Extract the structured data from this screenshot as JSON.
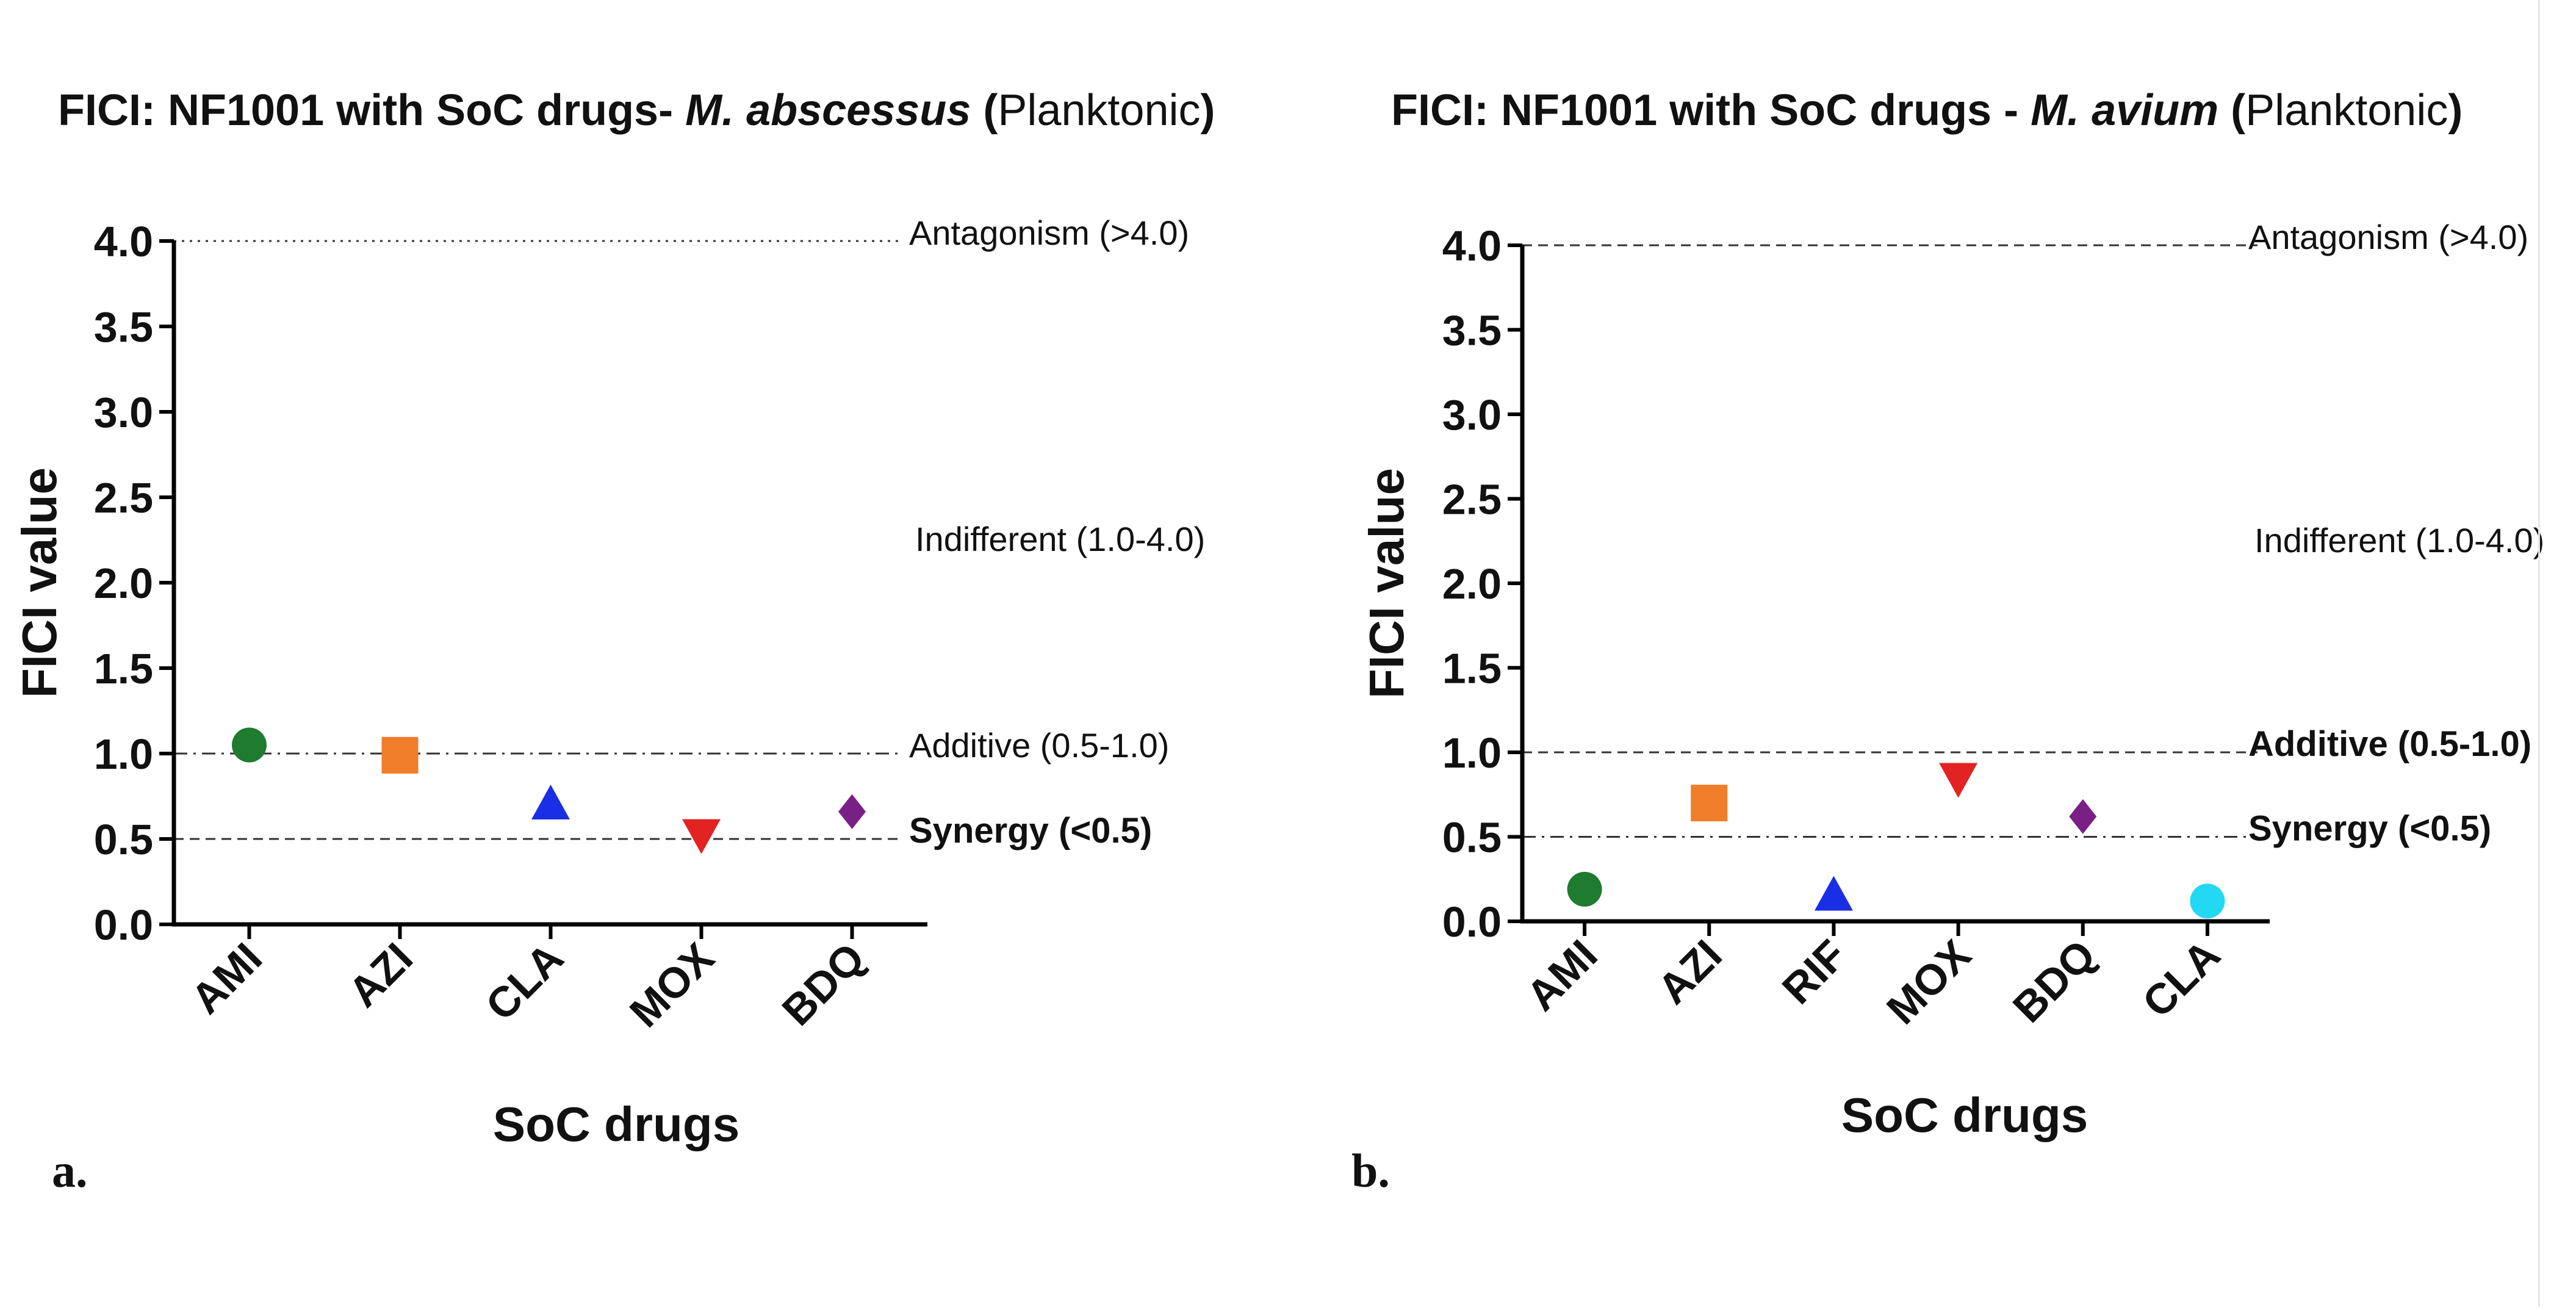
{
  "chart_data": [
    {
      "type": "scatter",
      "panel_label": "a.",
      "title": {
        "prefix": "FICI: NF1001 with SoC drugs- ",
        "organism": "M. abscessus",
        "paren_open": " (",
        "condition": "Planktonic",
        "paren_close": ")"
      },
      "xlabel": "SoC drugs",
      "ylabel": "FICI value",
      "ylim": [
        0,
        4.0
      ],
      "yticks": [
        "0.0",
        "0.5",
        "1.0",
        "1.5",
        "2.0",
        "2.5",
        "3.0",
        "3.5",
        "4.0"
      ],
      "categories": [
        "AMI",
        "AZI",
        "CLA",
        "MOX",
        "BDQ"
      ],
      "values": [
        1.05,
        0.99,
        0.7,
        0.53,
        0.66
      ],
      "markers": [
        "circle",
        "square",
        "triangle-up",
        "triangle-down",
        "diamond"
      ],
      "colors": [
        "#1e7b2f",
        "#f07d2a",
        "#1a2ee6",
        "#e32222",
        "#7a1f86"
      ],
      "reference_lines": [
        {
          "value": 4.0,
          "label": "Antagonism (>4.0)",
          "style": "dotted",
          "bold": false
        },
        {
          "value": 1.0,
          "label": "Additive (0.5-1.0)",
          "style": "dashdot",
          "bold": false
        },
        {
          "value": 0.5,
          "label": "Synergy (<0.5)",
          "style": "dashed",
          "bold": true
        }
      ],
      "band_labels": [
        {
          "value": 2.25,
          "label": "Indifferent (1.0-4.0)"
        }
      ]
    },
    {
      "type": "scatter",
      "panel_label": "b.",
      "title": {
        "prefix": "FICI: NF1001 with SoC drugs - ",
        "organism": "M. avium",
        "paren_open": " (",
        "condition": "Planktonic",
        "paren_close": ")"
      },
      "xlabel": "SoC drugs",
      "ylabel": "FICI value",
      "ylim": [
        0,
        4.0
      ],
      "yticks": [
        "0.0",
        "0.5",
        "1.0",
        "1.5",
        "2.0",
        "2.5",
        "3.0",
        "3.5",
        "4.0"
      ],
      "categories": [
        "AMI",
        "AZI",
        "RIF",
        "MOX",
        "BDQ",
        "CLA"
      ],
      "values": [
        0.19,
        0.7,
        0.15,
        0.85,
        0.62,
        0.12
      ],
      "markers": [
        "circle",
        "square",
        "triangle-up",
        "triangle-down",
        "diamond",
        "circle"
      ],
      "colors": [
        "#1e7b2f",
        "#f07d2a",
        "#1a2ee6",
        "#e32222",
        "#7a1f86",
        "#22d8f2"
      ],
      "reference_lines": [
        {
          "value": 4.0,
          "label": "Antagonism (>4.0)",
          "style": "dashed",
          "bold": false
        },
        {
          "value": 1.0,
          "label": "Additive (0.5-1.0)",
          "style": "dashed",
          "bold": true
        },
        {
          "value": 0.5,
          "label": "Synergy (<0.5)",
          "style": "dashdot",
          "bold": true
        }
      ],
      "band_labels": [
        {
          "value": 2.25,
          "label": "Indifferent (1.0-4.0)"
        }
      ]
    }
  ]
}
